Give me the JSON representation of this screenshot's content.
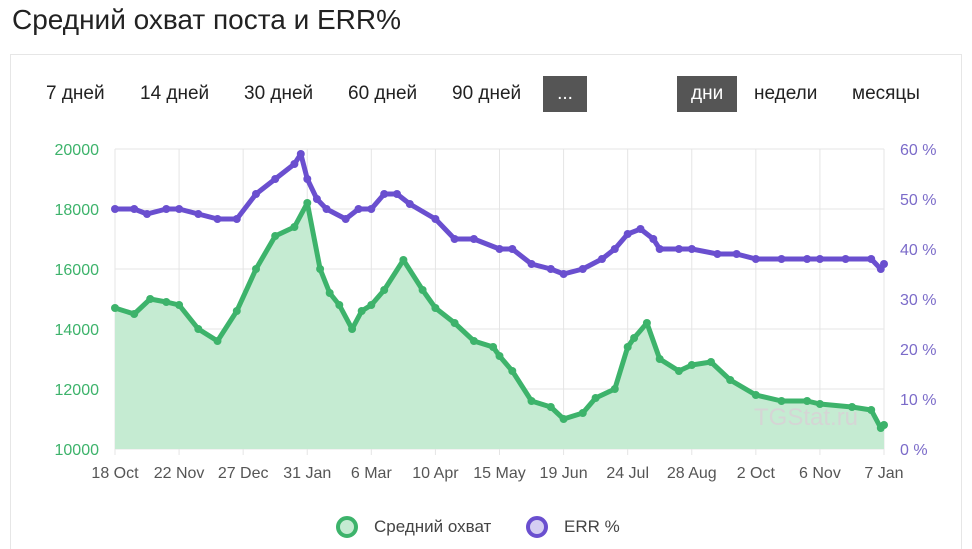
{
  "title": "Средний охват поста и ERR%",
  "period_buttons": [
    {
      "label": "7 дней"
    },
    {
      "label": "14 дней"
    },
    {
      "label": "30 дней"
    },
    {
      "label": "60 дней"
    },
    {
      "label": "90 дней"
    },
    {
      "label": "...",
      "active": true
    }
  ],
  "granularity_buttons": [
    {
      "label": "дни",
      "active": true
    },
    {
      "label": "недели"
    },
    {
      "label": "месяцы"
    }
  ],
  "watermark": "TGStat.ru",
  "colors": {
    "reach_line": "#3db36b",
    "reach_fill": "#c5ebd2",
    "err_line": "#6a4fcf",
    "left_axis": "#3db36b",
    "right_axis": "#7b6bc9",
    "grid": "#e5e5e5",
    "x_axis": "#555555"
  },
  "chart_data": {
    "type": "line",
    "x_ticks": [
      "18 Oct",
      "22 Nov",
      "27 Dec",
      "31 Jan",
      "6 Mar",
      "10 Apr",
      "15 May",
      "19 Jun",
      "24 Jul",
      "28 Aug",
      "2 Oct",
      "6 Nov",
      "7 Jan"
    ],
    "y_left": {
      "ticks": [
        10000,
        12000,
        14000,
        16000,
        18000,
        20000
      ],
      "range": [
        10000,
        20000
      ]
    },
    "y_right": {
      "ticks": [
        "0 %",
        "10 %",
        "20 %",
        "30 %",
        "40 %",
        "50 %",
        "60 %"
      ],
      "range": [
        0,
        60
      ]
    },
    "grid": true,
    "legend_position": "bottom",
    "series": [
      {
        "name": "Средний охват",
        "axis": "left",
        "x_index": [
          0,
          0.3,
          0.55,
          0.8,
          1,
          1.3,
          1.6,
          1.9,
          2.2,
          2.5,
          2.8,
          3,
          3.2,
          3.35,
          3.5,
          3.7,
          3.85,
          4,
          4.2,
          4.5,
          4.8,
          5,
          5.3,
          5.6,
          5.9,
          6,
          6.2,
          6.5,
          6.8,
          7,
          7.3,
          7.5,
          7.8,
          8,
          8.1,
          8.3,
          8.5,
          8.8,
          9,
          9.3,
          9.6,
          10,
          10.4,
          10.8,
          11,
          11.5,
          11.8,
          11.95,
          12
        ],
        "values": [
          14700,
          14500,
          15000,
          14900,
          14800,
          14000,
          13600,
          14600,
          16000,
          17100,
          17400,
          18200,
          16000,
          15200,
          14800,
          14000,
          14600,
          14800,
          15300,
          16300,
          15300,
          14700,
          14200,
          13600,
          13400,
          13100,
          12600,
          11600,
          11400,
          11000,
          11200,
          11700,
          12000,
          13400,
          13700,
          14200,
          13000,
          12600,
          12800,
          12900,
          12300,
          11800,
          11600,
          11600,
          11500,
          11400,
          11300,
          10700,
          10800
        ]
      },
      {
        "name": "ERR %",
        "axis": "right",
        "x_index": [
          0,
          0.3,
          0.5,
          0.8,
          1,
          1.3,
          1.6,
          1.9,
          2.2,
          2.5,
          2.8,
          2.9,
          3,
          3.15,
          3.3,
          3.6,
          3.8,
          4,
          4.2,
          4.4,
          4.6,
          5,
          5.3,
          5.6,
          6,
          6.2,
          6.5,
          6.8,
          7,
          7.3,
          7.6,
          7.8,
          8,
          8.2,
          8.4,
          8.5,
          8.8,
          9,
          9.4,
          9.7,
          10,
          10.4,
          10.8,
          11,
          11.4,
          11.8,
          11.95,
          12
        ],
        "values": [
          48,
          48,
          47,
          48,
          48,
          47,
          46,
          46,
          51,
          54,
          57,
          59,
          54,
          50,
          48,
          46,
          48,
          48,
          51,
          51,
          49,
          46,
          42,
          42,
          40,
          40,
          37,
          36,
          35,
          36,
          38,
          40,
          43,
          44,
          42,
          40,
          40,
          40,
          39,
          39,
          38,
          38,
          38,
          38,
          38,
          38,
          36,
          37
        ]
      }
    ]
  }
}
